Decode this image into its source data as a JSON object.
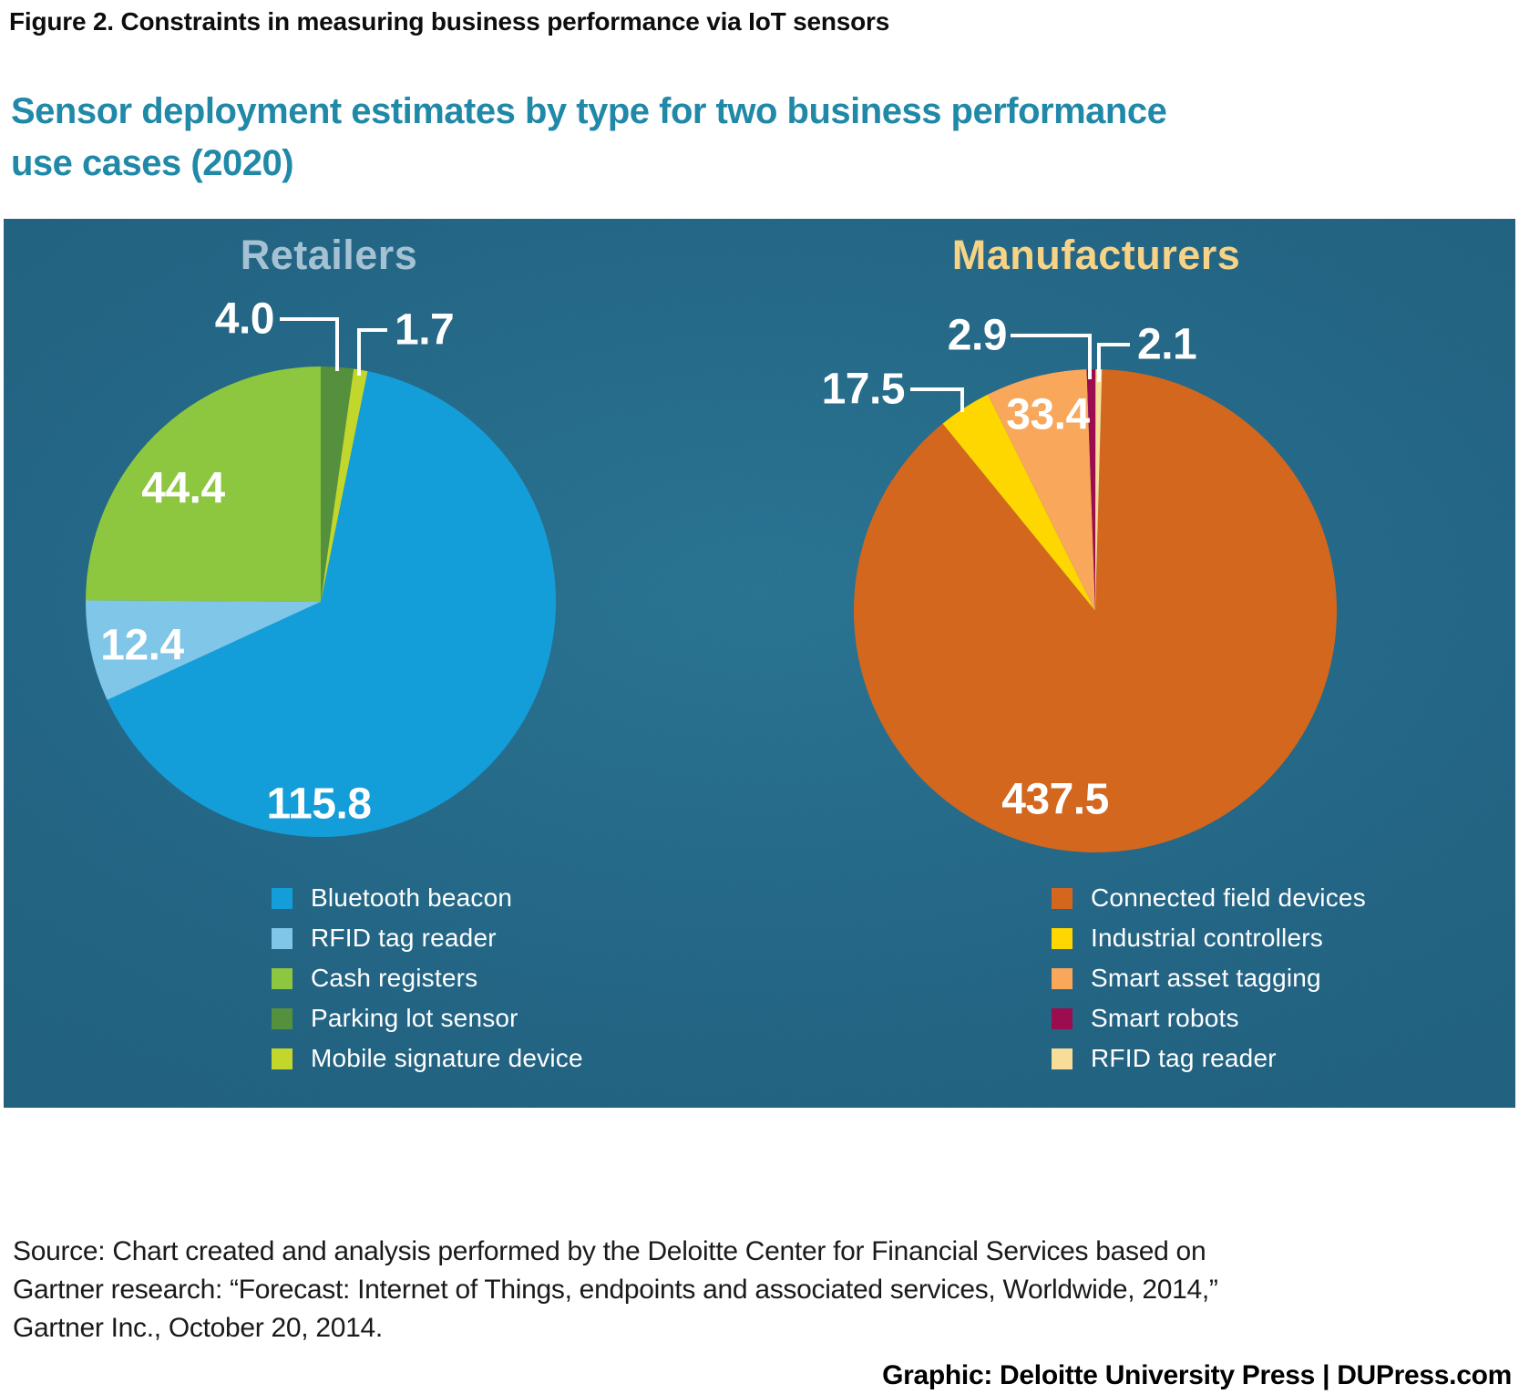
{
  "figure_title": "Figure 2. Constraints in measuring business performance via IoT sensors",
  "subtitle_line1": "Sensor deployment estimates by type for two business performance",
  "subtitle_line2": "use cases (2020)",
  "colors": {
    "panel_background": "#1e6181",
    "subtitle_teal": "#2189a8",
    "retailers_title": "#a4c2d3",
    "manufacturers_title": "#f6d387",
    "value_label": "#ffffff"
  },
  "chart_data": [
    {
      "type": "pie",
      "title": "Retailers",
      "title_color": "#a4c2d3",
      "start_angle_deg": 11.5,
      "legend_position": "bottom",
      "slices": [
        {
          "label": "Bluetooth beacon",
          "value": 115.8,
          "display": "115.8",
          "color": "#149ed9"
        },
        {
          "label": "RFID tag reader",
          "value": 12.4,
          "display": "12.4",
          "color": "#7fc6e8"
        },
        {
          "label": "Cash registers",
          "value": 44.4,
          "display": "44.4",
          "color": "#8dc63f"
        },
        {
          "label": "Parking lot sensor",
          "value": 4.0,
          "display": "4.0",
          "color": "#55913c"
        },
        {
          "label": "Mobile signature device",
          "value": 1.7,
          "display": "1.7",
          "color": "#c3d62b"
        }
      ]
    },
    {
      "type": "pie",
      "title": "Manufacturers",
      "title_color": "#f6d387",
      "start_angle_deg": 1.6,
      "legend_position": "bottom",
      "slices": [
        {
          "label": "Connected field devices",
          "value": 437.5,
          "display": "437.5",
          "color": "#d4671e"
        },
        {
          "label": "Industrial controllers",
          "value": 17.5,
          "display": "17.5",
          "color": "#fed700"
        },
        {
          "label": "Smart asset tagging",
          "value": 33.4,
          "display": "33.4",
          "color": "#f9a75a"
        },
        {
          "label": "Smart robots",
          "value": 2.9,
          "display": "2.9",
          "color": "#9b0d4e"
        },
        {
          "label": "RFID tag reader",
          "value": 2.1,
          "display": "2.1",
          "color": "#f8dd99"
        }
      ]
    }
  ],
  "source": {
    "lines": [
      "Source: Chart created and analysis performed by the Deloitte Center for Financial Services based on",
      "Gartner research: “Forecast: Internet of Things, endpoints and associated services, Worldwide, 2014,”",
      "Gartner Inc., October 20, 2014."
    ]
  },
  "credit": "Graphic: Deloitte University Press  |  DUPress.com"
}
